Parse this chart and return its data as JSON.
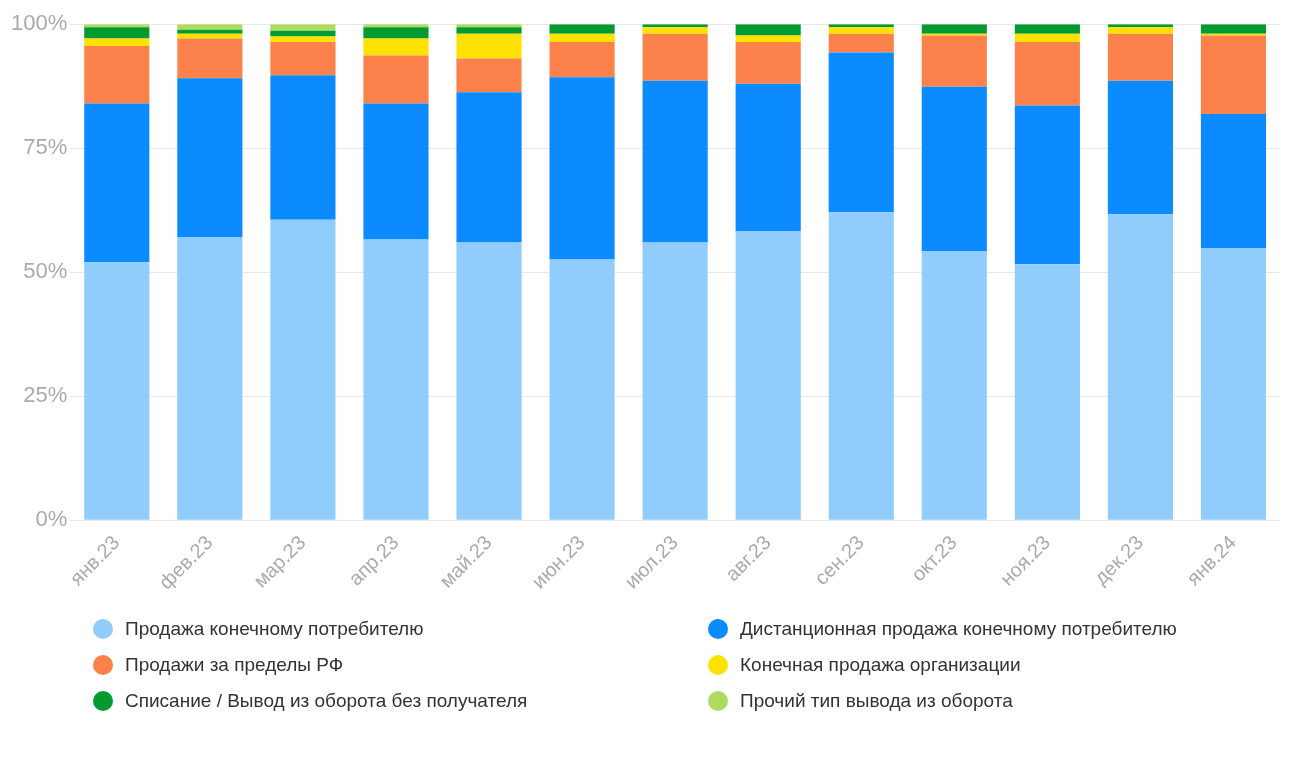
{
  "chart_data": {
    "type": "bar",
    "stacked": true,
    "categories": [
      "янв.23",
      "фев.23",
      "мар.23",
      "апр.23",
      "май.23",
      "июн.23",
      "июл.23",
      "авг.23",
      "сен.23",
      "окт.23",
      "ноя.23",
      "дек.23",
      "янв.24"
    ],
    "series": [
      {
        "name": "Продажа конечному потребителю",
        "color": "#90cdfc",
        "values": [
          52.0,
          57.1,
          60.6,
          56.6,
          56.0,
          52.6,
          56.0,
          58.3,
          62.1,
          54.3,
          51.6,
          61.7,
          54.9
        ]
      },
      {
        "name": "Дистанционная продажа конечному потребителю",
        "color": "#0b8bff",
        "values": [
          32.0,
          32.0,
          29.1,
          27.4,
          30.3,
          36.7,
          32.6,
          29.7,
          32.2,
          33.1,
          32.0,
          26.9,
          27.0
        ]
      },
      {
        "name": "Продажи за пределы РФ",
        "color": "#fc814a",
        "values": [
          11.6,
          8.0,
          6.7,
          9.7,
          6.8,
          7.1,
          9.5,
          8.4,
          3.8,
          10.3,
          12.8,
          9.5,
          15.8
        ]
      },
      {
        "name": "Конечная продажа организации",
        "color": "#ffe100",
        "values": [
          1.5,
          1.0,
          1.1,
          3.4,
          5.0,
          1.7,
          1.3,
          1.3,
          1.3,
          0.4,
          1.7,
          1.3,
          0.4
        ]
      },
      {
        "name": "Списание / Вывод из оборота без получателя",
        "color": "#039b31",
        "values": [
          2.3,
          0.8,
          1.2,
          2.3,
          1.3,
          1.9,
          0.6,
          2.3,
          0.6,
          1.9,
          1.9,
          0.6,
          1.9
        ]
      },
      {
        "name": "Прочий тип вывода из оборота",
        "color": "#aedb5f",
        "values": [
          0.6,
          1.1,
          1.3,
          0.6,
          0.6,
          0,
          0,
          0,
          0,
          0,
          0,
          0,
          0
        ]
      }
    ],
    "ylim": [
      0,
      100
    ],
    "yticks": [
      {
        "value": 0,
        "label": "0%"
      },
      {
        "value": 25,
        "label": "25%"
      },
      {
        "value": 50,
        "label": "50%"
      },
      {
        "value": 75,
        "label": "75%"
      },
      {
        "value": 100,
        "label": "100%"
      }
    ],
    "grid": "y",
    "legend": "bottom"
  }
}
